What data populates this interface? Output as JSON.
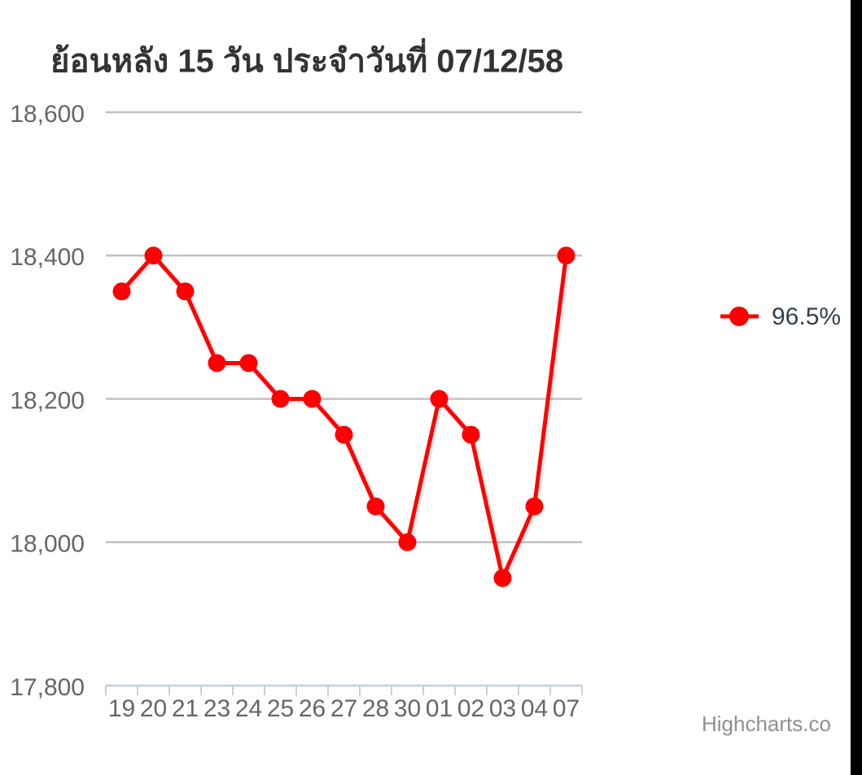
{
  "chart_data": {
    "type": "line",
    "title": "ย้อนหลัง 15 วัน ประจำวันที่ 07/12/58",
    "categories": [
      "19",
      "20",
      "21",
      "23",
      "24",
      "25",
      "26",
      "27",
      "28",
      "30",
      "01",
      "02",
      "03",
      "04",
      "07"
    ],
    "series": [
      {
        "name": "96.5%",
        "color": "#ff0000",
        "values": [
          18350,
          18400,
          18350,
          18250,
          18250,
          18200,
          18200,
          18150,
          18050,
          18000,
          18200,
          18150,
          17950,
          18050,
          18400
        ]
      }
    ],
    "ylim": [
      17800,
      18600
    ],
    "yticks": [
      {
        "value": 17800,
        "label": "17,800"
      },
      {
        "value": 18000,
        "label": "18,000"
      },
      {
        "value": 18200,
        "label": "18,200"
      },
      {
        "value": 18400,
        "label": "18,400"
      },
      {
        "value": 18600,
        "label": "18,600"
      }
    ],
    "grid": true,
    "legend": "right",
    "credits": "Highcharts.co"
  }
}
